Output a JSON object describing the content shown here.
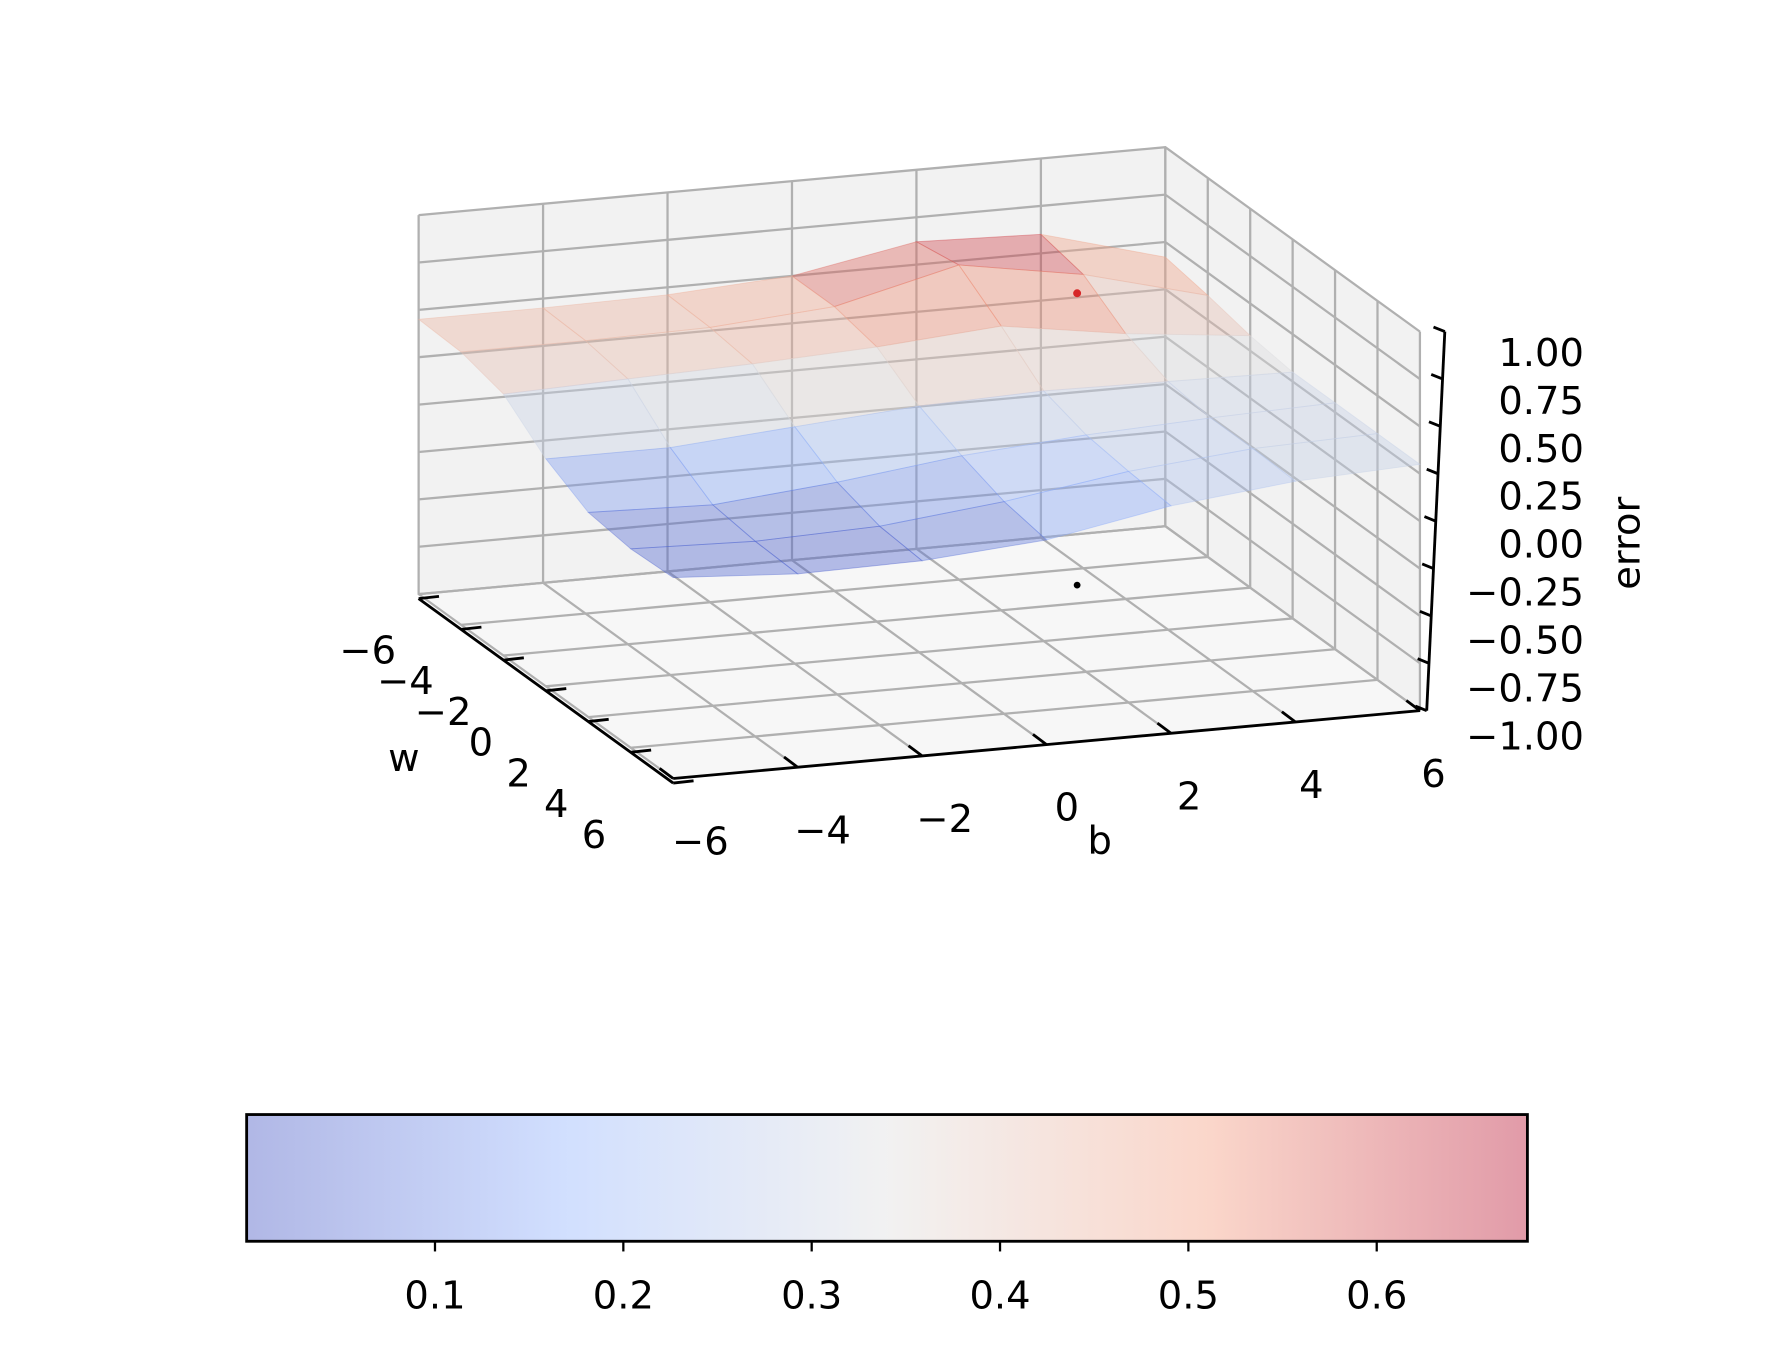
{
  "chart_data": {
    "type": "surface3d",
    "x_label": "w",
    "y_label": "b",
    "z_label": "error",
    "x": [
      -6,
      -4,
      -2,
      0,
      2,
      4,
      6
    ],
    "y": [
      -6,
      -4,
      -2,
      0,
      2,
      4,
      6
    ],
    "z": [
      [
        0.45,
        0.45,
        0.46,
        0.5,
        0.62,
        0.6,
        0.42
      ],
      [
        0.44,
        0.44,
        0.45,
        0.5,
        0.66,
        0.55,
        0.38
      ],
      [
        0.38,
        0.4,
        0.42,
        0.45,
        0.5,
        0.4,
        0.33
      ],
      [
        0.2,
        0.2,
        0.25,
        0.3,
        0.32,
        0.31,
        0.3
      ],
      [
        0.08,
        0.06,
        0.12,
        0.2,
        0.25,
        0.28,
        0.3
      ],
      [
        0.05,
        0.03,
        0.05,
        0.12,
        0.22,
        0.28,
        0.3
      ],
      [
        0.06,
        0.02,
        0.03,
        0.08,
        0.2,
        0.27,
        0.3
      ]
    ],
    "xlim": [
      -6,
      6
    ],
    "ylim": [
      -6,
      6
    ],
    "zlim": [
      -1,
      1
    ],
    "xticks": [
      {
        "value": -6,
        "label": "−6"
      },
      {
        "value": -4,
        "label": "−4"
      },
      {
        "value": -2,
        "label": "−2"
      },
      0,
      2,
      4,
      6
    ],
    "yticks": [
      {
        "value": -6,
        "label": "−6"
      },
      {
        "value": -4,
        "label": "−4"
      },
      {
        "value": -2,
        "label": "−2"
      },
      0,
      2,
      4,
      6
    ],
    "zticks": [
      {
        "value": -1,
        "label": "−1.00"
      },
      {
        "value": -0.75,
        "label": "−0.75"
      },
      {
        "value": -0.5,
        "label": "−0.50"
      },
      {
        "value": -0.25,
        "label": "−0.25"
      },
      {
        "value": 0,
        "label": "0.00"
      },
      {
        "value": 0.25,
        "label": "0.25"
      },
      {
        "value": 0.5,
        "label": "0.50"
      },
      {
        "value": 0.75,
        "label": "0.75"
      },
      {
        "value": 1,
        "label": "1.00"
      }
    ],
    "grid": true,
    "colormap": "coolwarm",
    "alpha": 0.4,
    "point": {
      "w": -3.06,
      "b": 3.58,
      "error": 0.54,
      "color": "#d62728",
      "floor_color": "#000000"
    },
    "colorbar": {
      "clim": [
        0.0,
        0.68
      ],
      "ticks": [
        0.1,
        0.2,
        0.3,
        0.4,
        0.5,
        0.6
      ]
    }
  }
}
